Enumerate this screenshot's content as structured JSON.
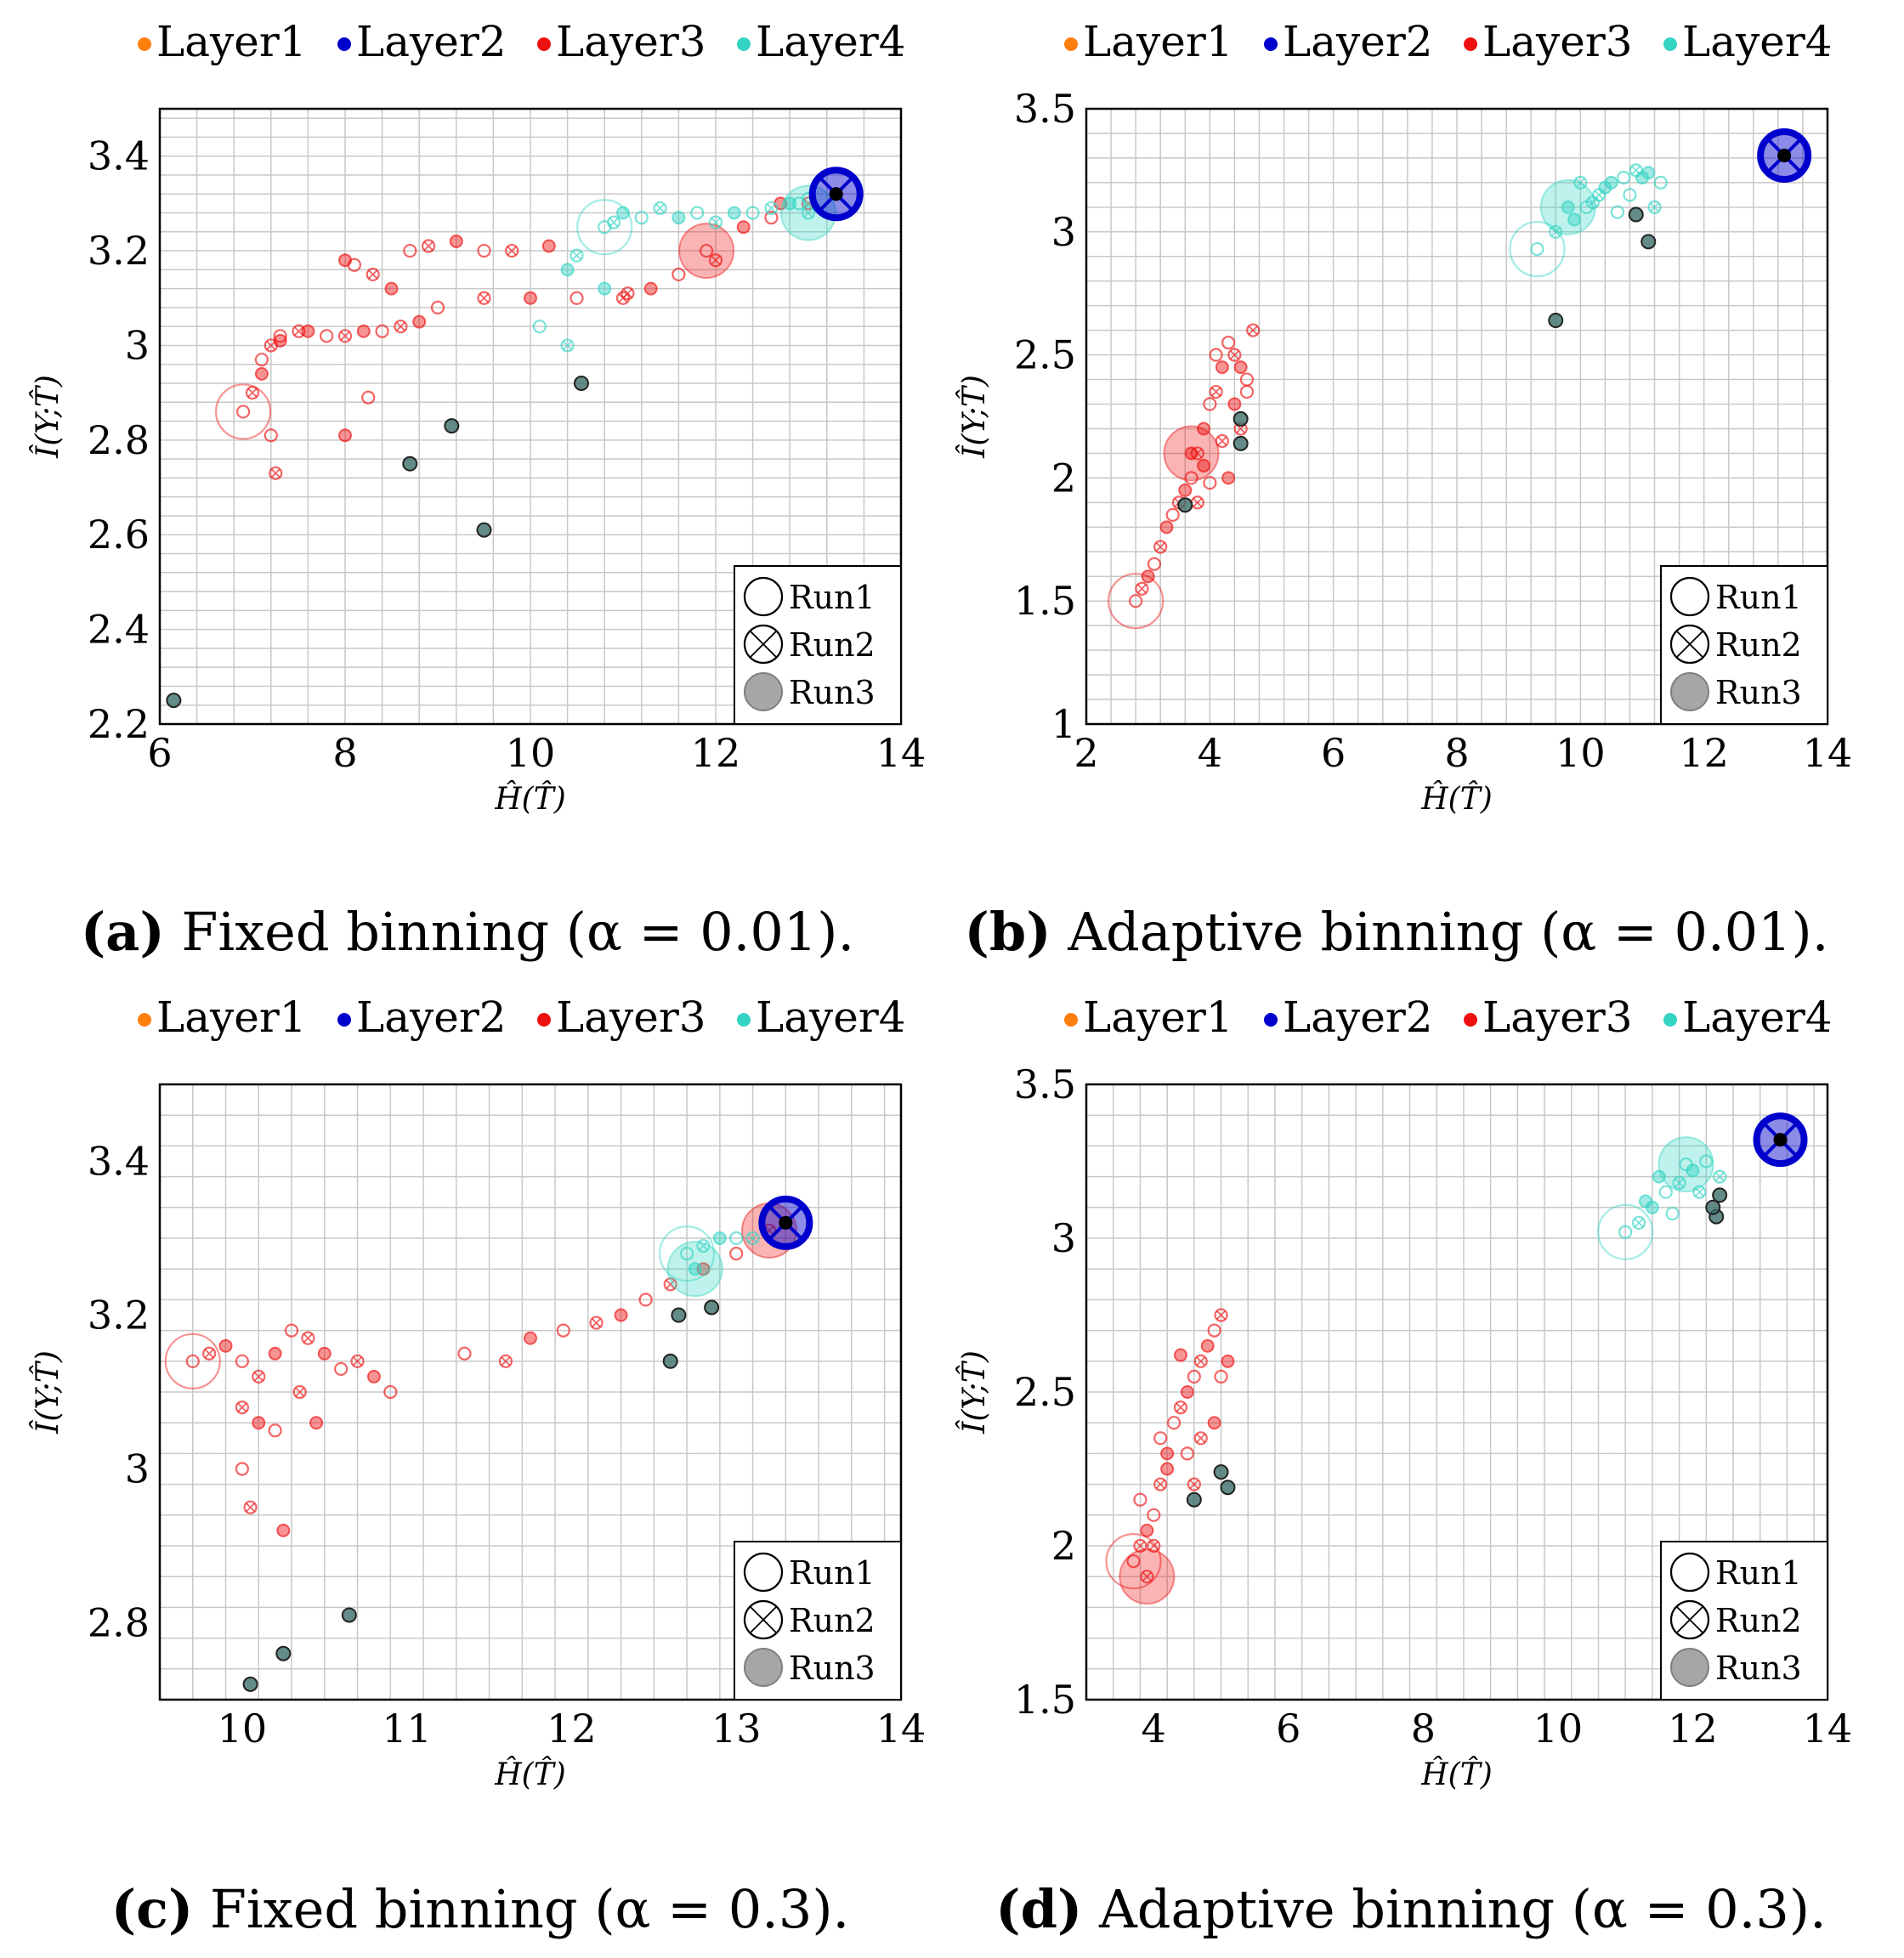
{
  "legend_layers": [
    "Layer1",
    "Layer2",
    "Layer3",
    "Layer4"
  ],
  "legend_runs": [
    "Run1",
    "Run2",
    "Run3"
  ],
  "colors": {
    "Layer1": "#ff7f0e",
    "Layer2": "#0000cc",
    "Layer3": "#ee1111",
    "Layer4": "#33d4c4",
    "grid": "#c8c8c8",
    "run3_fill": "#808080"
  },
  "chart_data": [
    {
      "type": "scatter",
      "caption_label": "(a)",
      "caption_text": " Fixed binning (α = 0.01).",
      "xlabel": "Ĥ(T̂)",
      "ylabel": "Î(Y;T̂)",
      "xlim": [
        6,
        14
      ],
      "ylim": [
        2.2,
        3.5
      ],
      "xticks": [
        6,
        8,
        10,
        12,
        14
      ],
      "yticks": [
        2.2,
        2.4,
        2.6,
        2.8,
        3,
        3.2,
        3.4
      ],
      "grid": true,
      "legend_position": "top",
      "runs_legend_position": "bottom-right",
      "series": [
        {
          "name": "Layer3",
          "x": [
            6.9,
            7.0,
            7.1,
            7.1,
            7.2,
            7.3,
            7.3,
            7.5,
            7.6,
            7.8,
            8.0,
            8.2,
            8.4,
            8.6,
            8.8,
            9.0,
            9.5,
            10.0,
            10.5,
            11.0,
            11.3,
            11.6,
            12.0,
            12.3,
            12.6,
            13.0,
            8.0,
            8.1,
            8.3,
            8.5,
            8.7,
            8.9,
            9.2,
            9.5,
            9.8,
            10.2,
            7.2,
            7.25,
            8.0,
            8.25,
            11.05,
            12.7,
            11.9
          ],
          "y": [
            2.86,
            2.9,
            2.94,
            2.97,
            3.0,
            3.01,
            3.02,
            3.03,
            3.03,
            3.02,
            3.02,
            3.03,
            3.03,
            3.04,
            3.05,
            3.08,
            3.1,
            3.1,
            3.1,
            3.1,
            3.12,
            3.15,
            3.18,
            3.25,
            3.27,
            3.3,
            3.18,
            3.17,
            3.15,
            3.12,
            3.2,
            3.21,
            3.22,
            3.2,
            3.2,
            3.21,
            2.81,
            2.73,
            2.81,
            2.89,
            3.11,
            3.3,
            3.2
          ]
        },
        {
          "name": "Layer4",
          "x": [
            10.8,
            10.9,
            11.0,
            11.2,
            11.4,
            11.6,
            11.8,
            12.0,
            12.2,
            12.4,
            12.6,
            12.8,
            13.0,
            10.5,
            10.4,
            10.1,
            10.4,
            10.8,
            12.9,
            13.0
          ],
          "y": [
            3.25,
            3.26,
            3.28,
            3.27,
            3.29,
            3.27,
            3.28,
            3.26,
            3.28,
            3.28,
            3.29,
            3.3,
            3.31,
            3.19,
            3.16,
            3.04,
            3.0,
            3.12,
            3.3,
            3.28
          ]
        },
        {
          "name": "Layer2",
          "x": [
            13.3
          ],
          "y": [
            3.32
          ]
        }
      ],
      "extra_points": {
        "x": [
          9.15,
          8.7,
          9.5,
          6.15,
          10.55
        ],
        "y": [
          2.83,
          2.75,
          2.61,
          2.25,
          2.92
        ]
      }
    },
    {
      "type": "scatter",
      "caption_label": "(b)",
      "caption_text": " Adaptive binning (α = 0.01).",
      "xlabel": "Ĥ(T̂)",
      "ylabel": "Î(Y;T̂)",
      "xlim": [
        2,
        14
      ],
      "ylim": [
        1,
        3.5
      ],
      "xticks": [
        2,
        4,
        6,
        8,
        10,
        12,
        14
      ],
      "yticks": [
        1,
        1.5,
        2,
        2.5,
        3,
        3.5
      ],
      "grid": true,
      "legend_position": "top",
      "runs_legend_position": "bottom-right",
      "series": [
        {
          "name": "Layer3",
          "x": [
            2.8,
            2.9,
            3.0,
            3.1,
            3.2,
            3.3,
            3.4,
            3.5,
            3.6,
            3.7,
            3.8,
            3.9,
            4.0,
            4.1,
            4.2,
            4.3,
            4.4,
            4.5,
            4.6,
            4.7,
            3.9,
            4.0,
            4.2,
            4.4,
            4.6,
            4.5,
            4.3,
            4.1,
            3.8,
            3.7
          ],
          "y": [
            1.5,
            1.55,
            1.6,
            1.65,
            1.72,
            1.8,
            1.85,
            1.9,
            1.95,
            2.0,
            2.1,
            2.2,
            2.3,
            2.35,
            2.45,
            2.55,
            2.5,
            2.45,
            2.4,
            2.6,
            2.05,
            1.98,
            2.15,
            2.3,
            2.35,
            2.2,
            2.0,
            2.5,
            1.9,
            2.1
          ]
        },
        {
          "name": "Layer4",
          "x": [
            9.3,
            9.6,
            9.9,
            10.1,
            10.3,
            10.5,
            10.7,
            10.9,
            11.1,
            11.3,
            10.0,
            10.4,
            10.8,
            11.2,
            11.0,
            10.6,
            10.2,
            9.8
          ],
          "y": [
            2.93,
            3.0,
            3.05,
            3.1,
            3.15,
            3.2,
            3.22,
            3.25,
            3.24,
            3.2,
            3.2,
            3.18,
            3.15,
            3.1,
            3.22,
            3.08,
            3.12,
            3.1
          ]
        },
        {
          "name": "Layer2",
          "x": [
            13.3
          ],
          "y": [
            3.31
          ]
        }
      ],
      "extra_points": {
        "x": [
          10.9,
          11.1,
          9.6,
          4.5,
          4.5,
          3.6
        ],
        "y": [
          3.07,
          2.96,
          2.64,
          2.24,
          2.14,
          1.89
        ]
      }
    },
    {
      "type": "scatter",
      "caption_label": "(c)",
      "caption_text": " Fixed binning (α = 0.3).",
      "xlabel": "Ĥ(T̂)",
      "ylabel": "Î(Y;T̂)",
      "xlim": [
        9.5,
        14
      ],
      "ylim": [
        2.7,
        3.5
      ],
      "xticks": [
        10,
        11,
        12,
        13,
        14
      ],
      "yticks": [
        2.8,
        3,
        3.2,
        3.4
      ],
      "grid": true,
      "legend_position": "top",
      "runs_legend_position": "bottom-right",
      "series": [
        {
          "name": "Layer3",
          "x": [
            9.7,
            9.8,
            9.9,
            10.0,
            10.1,
            10.2,
            10.3,
            10.4,
            10.5,
            10.6,
            10.7,
            10.8,
            10.9,
            10.0,
            10.1,
            10.2,
            10.35,
            10.45,
            10.0,
            10.05,
            10.25,
            11.35,
            11.6,
            11.75,
            11.95,
            12.15,
            12.3,
            12.45,
            12.6,
            12.8,
            13.0,
            13.2
          ],
          "y": [
            3.14,
            3.15,
            3.16,
            3.14,
            3.12,
            3.15,
            3.18,
            3.17,
            3.15,
            3.13,
            3.14,
            3.12,
            3.1,
            3.08,
            3.06,
            3.05,
            3.1,
            3.06,
            3.0,
            2.95,
            2.92,
            3.15,
            3.14,
            3.17,
            3.18,
            3.19,
            3.2,
            3.22,
            3.24,
            3.26,
            3.28,
            3.31
          ]
        },
        {
          "name": "Layer4",
          "x": [
            12.7,
            12.8,
            12.9,
            13.0,
            13.1,
            12.75
          ],
          "y": [
            3.28,
            3.29,
            3.3,
            3.3,
            3.3,
            3.26
          ]
        },
        {
          "name": "Layer2",
          "x": [
            13.3
          ],
          "y": [
            3.32
          ]
        }
      ],
      "extra_points": {
        "x": [
          12.65,
          12.85,
          12.6,
          10.65,
          10.25,
          10.05
        ],
        "y": [
          3.2,
          3.21,
          3.14,
          2.81,
          2.76,
          2.72
        ]
      }
    },
    {
      "type": "scatter",
      "caption_label": "(d)",
      "caption_text": " Adaptive binning (α = 0.3).",
      "xlabel": "Ĥ(T̂)",
      "ylabel": "Î(Y;T̂)",
      "xlim": [
        3,
        14
      ],
      "ylim": [
        1.5,
        3.5
      ],
      "xticks": [
        4,
        6,
        8,
        10,
        12,
        14
      ],
      "yticks": [
        1.5,
        2,
        2.5,
        3,
        3.5
      ],
      "grid": true,
      "legend_position": "top",
      "runs_legend_position": "bottom-right",
      "series": [
        {
          "name": "Layer3",
          "x": [
            3.7,
            3.8,
            3.9,
            4.0,
            4.1,
            4.2,
            4.3,
            4.4,
            4.5,
            4.6,
            4.7,
            4.8,
            4.9,
            5.0,
            5.1,
            3.8,
            4.0,
            4.2,
            4.5,
            4.7,
            4.9,
            5.0,
            4.6,
            4.4,
            4.1,
            3.9
          ],
          "y": [
            1.95,
            2.0,
            2.05,
            2.1,
            2.2,
            2.3,
            2.4,
            2.45,
            2.5,
            2.55,
            2.6,
            2.65,
            2.7,
            2.75,
            2.6,
            2.15,
            2.0,
            2.25,
            2.3,
            2.35,
            2.4,
            2.55,
            2.2,
            2.62,
            2.35,
            1.9
          ]
        },
        {
          "name": "Layer4",
          "x": [
            11.0,
            11.2,
            11.4,
            11.6,
            11.8,
            12.0,
            12.2,
            12.4,
            11.3,
            11.7,
            12.1,
            11.5,
            11.9
          ],
          "y": [
            3.02,
            3.05,
            3.1,
            3.15,
            3.18,
            3.22,
            3.25,
            3.2,
            3.12,
            3.08,
            3.15,
            3.2,
            3.24
          ]
        },
        {
          "name": "Layer2",
          "x": [
            13.3
          ],
          "y": [
            3.32
          ]
        }
      ],
      "extra_points": {
        "x": [
          12.4,
          12.35,
          12.3,
          5.1,
          5.0,
          4.6
        ],
        "y": [
          3.14,
          3.07,
          3.1,
          2.19,
          2.24,
          2.15
        ]
      }
    }
  ]
}
